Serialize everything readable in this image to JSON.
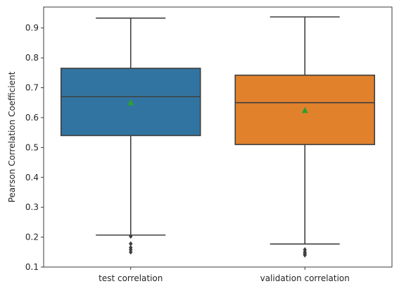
{
  "chart_data": {
    "type": "box",
    "ylabel": "Pearson Correlation Coefficient",
    "xlabel": "",
    "ylim": [
      0.1,
      0.97
    ],
    "yticks": [
      0.1,
      0.2,
      0.3,
      0.4,
      0.5,
      0.6,
      0.7,
      0.8,
      0.9
    ],
    "grid": false,
    "categories": [
      "test correlation",
      "validation correlation"
    ],
    "boxes": [
      {
        "category": "test correlation",
        "color": "#3274a1",
        "q1": 0.54,
        "median": 0.67,
        "q3": 0.765,
        "whisker_low": 0.207,
        "whisker_high": 0.933,
        "mean": 0.651,
        "outliers": [
          0.203,
          0.178,
          0.165,
          0.158,
          0.15
        ]
      },
      {
        "category": "validation correlation",
        "color": "#e1812c",
        "q1": 0.51,
        "median": 0.65,
        "q3": 0.742,
        "whisker_low": 0.177,
        "whisker_high": 0.937,
        "mean": 0.625,
        "outliers": [
          0.158,
          0.15,
          0.145,
          0.14
        ]
      }
    ],
    "mean_marker_color": "#2ca02c",
    "line_color": "#3f3f3f",
    "outlier_color": "#3f3f3f"
  }
}
